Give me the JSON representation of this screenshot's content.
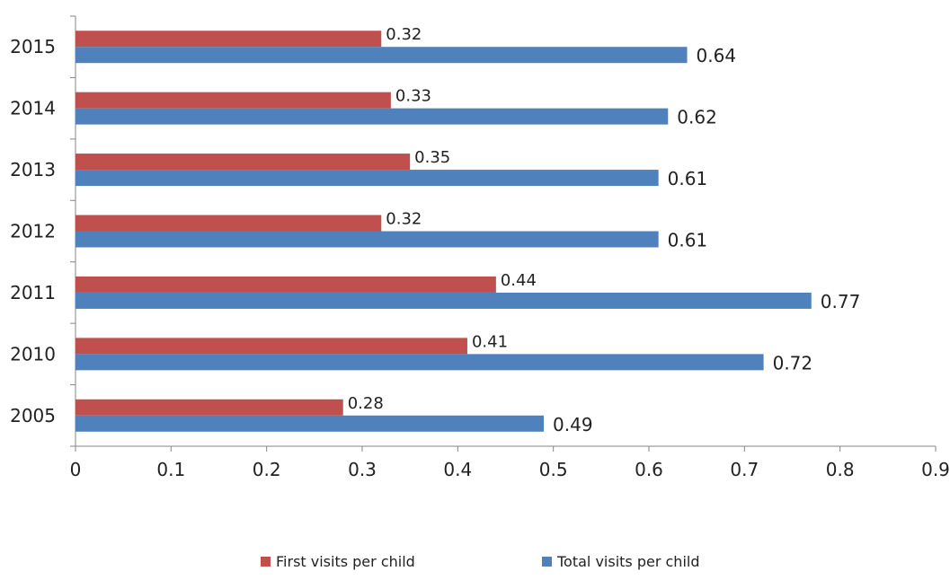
{
  "chart_data": {
    "type": "bar",
    "orientation": "horizontal",
    "categories": [
      "2015",
      "2014",
      "2013",
      "2012",
      "2011",
      "2010",
      "2005"
    ],
    "series": [
      {
        "name": "First visits per child",
        "color": "#C0504D",
        "values": [
          0.32,
          0.33,
          0.35,
          0.32,
          0.44,
          0.41,
          0.28
        ],
        "labels": [
          "0.32",
          "0.33",
          "0.35",
          "0.32",
          "0.44",
          "0.41",
          "0.28"
        ]
      },
      {
        "name": "Total visits per child",
        "color": "#4F81BD",
        "values": [
          0.64,
          0.62,
          0.61,
          0.61,
          0.77,
          0.72,
          0.49
        ],
        "labels": [
          "0.64",
          "0.62",
          "0.61",
          "0.61",
          "0.77",
          "0.72",
          "0.49"
        ]
      }
    ],
    "xlim": [
      0,
      0.9
    ],
    "xticks": [
      "0",
      "0.1",
      "0.2",
      "0.3",
      "0.4",
      "0.5",
      "0.6",
      "0.7",
      "0.8",
      "0.9"
    ],
    "grid": false,
    "legend_position": "bottom",
    "title": "",
    "xlabel": "",
    "ylabel": ""
  }
}
